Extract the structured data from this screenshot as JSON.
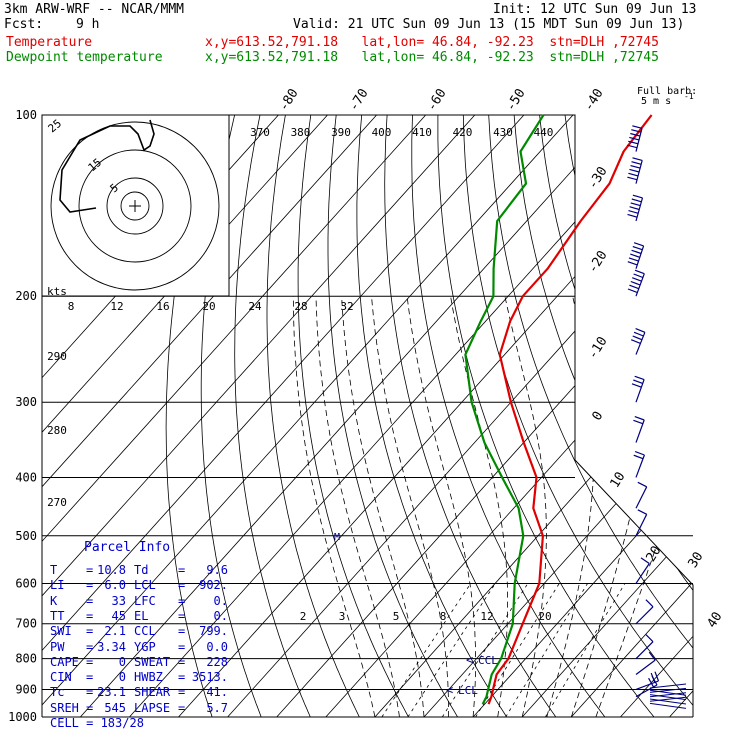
{
  "header": {
    "model": "3km ARW-WRF -- NCAR/MMM",
    "init": "Init: 12 UTC Sun 09 Jun 13",
    "fcst_label": "Fcst:",
    "fcst_hours": "9 h",
    "valid": "Valid: 21 UTC Sun 09 Jun 13 (15 MDT Sun 09 Jun 13)"
  },
  "legend": [
    {
      "name": "Temperature",
      "location": "x,y=613.52,791.18   lat,lon= 46.84, -92.23  stn=DLH ,72745",
      "color": "#e00000"
    },
    {
      "name": "Dewpoint temperature",
      "location": "x,y=613.52,791.18   lat,lon= 46.84, -92.23  stn=DLH ,72745",
      "color": "#008a00"
    }
  ],
  "wind_key": {
    "title": "Full barb:",
    "value": "5 m s",
    "exponent": "-1"
  },
  "parcel_info": {
    "title": "Parcel Info",
    "rows": [
      {
        "k1": "T",
        "v1": "10.8",
        "k2": "Td",
        "v2": "9.6"
      },
      {
        "k1": "LI",
        "v1": "6.0",
        "k2": "LCL",
        "v2": "902."
      },
      {
        "k1": "K",
        "v1": "33",
        "k2": "LFC",
        "v2": "0."
      },
      {
        "k1": "TT",
        "v1": "45",
        "k2": "EL",
        "v2": "0."
      },
      {
        "k1": "SWI",
        "v1": "2.1",
        "k2": "CCL",
        "v2": "799."
      },
      {
        "k1": "PW",
        "v1": "3.34",
        "k2": "YGP",
        "v2": "0.0"
      },
      {
        "k1": "CAPE",
        "v1": "0",
        "k2": "SWEAT",
        "v2": "228"
      },
      {
        "k1": "CIN",
        "v1": "0",
        "k2": "HWBZ",
        "v2": "3513."
      },
      {
        "k1": "Tc",
        "v1": "23.1",
        "k2": "SHEAR",
        "v2": "41."
      },
      {
        "k1": "SREH",
        "v1": "545",
        "k2": "LAPSE",
        "v2": "5.7"
      }
    ],
    "cell": "CELL = 183/28"
  },
  "chart_data": {
    "type": "line",
    "diagram": "skew-T log-p",
    "y_axis": {
      "quantity": "pressure (hPa)",
      "log_scale": true,
      "range": [
        1000,
        100
      ],
      "ticks": [
        100,
        200,
        300,
        400,
        500,
        600,
        700,
        800,
        900,
        1000
      ],
      "tick_labels": [
        "100",
        "200",
        "300",
        "400",
        "500",
        "600",
        "700",
        "800",
        "900",
        "1000"
      ]
    },
    "isotherm_labels": [
      "-80",
      "-70",
      "-60",
      "-50",
      "-40",
      "-30",
      "-20",
      "-10",
      "0",
      "10",
      "20",
      "30",
      "40"
    ],
    "isentrope_labels_top": [
      "370",
      "380",
      "390",
      "400",
      "410",
      "420",
      "430",
      "440"
    ],
    "isentrope_labels_left": [
      "290",
      "280",
      "270"
    ],
    "mixing_ratio_labels": [
      "2",
      "3",
      "5",
      "8",
      "12",
      "20"
    ],
    "hodograph": {
      "ring_labels": [
        "5",
        "15",
        "25"
      ],
      "speed_axis_label": "kts",
      "speed_ticks": [
        "8",
        "12",
        "16",
        "20",
        "24",
        "28",
        "32"
      ]
    },
    "annotations": [
      "CCL",
      "LCL"
    ],
    "series": [
      {
        "name": "Temperature",
        "color": "#e00000",
        "points": [
          [
            952,
            10.8
          ],
          [
            925,
            10
          ],
          [
            900,
            9
          ],
          [
            850,
            7
          ],
          [
            800,
            6.5
          ],
          [
            700,
            3
          ],
          [
            600,
            -1
          ],
          [
            500,
            -9
          ],
          [
            450,
            -16
          ],
          [
            400,
            -21
          ],
          [
            350,
            -30
          ],
          [
            300,
            -40
          ],
          [
            250,
            -51
          ],
          [
            220,
            -55
          ],
          [
            200,
            -57
          ],
          [
            180,
            -57
          ],
          [
            150,
            -59
          ],
          [
            130,
            -60
          ],
          [
            115,
            -63
          ],
          [
            100,
            -64
          ]
        ]
      },
      {
        "name": "Dewpoint temperature",
        "color": "#008a00",
        "points": [
          [
            952,
            9.6
          ],
          [
            925,
            9
          ],
          [
            900,
            8
          ],
          [
            850,
            6
          ],
          [
            800,
            5
          ],
          [
            700,
            1
          ],
          [
            600,
            -6
          ],
          [
            500,
            -13
          ],
          [
            450,
            -19
          ],
          [
            400,
            -28
          ],
          [
            350,
            -38
          ],
          [
            300,
            -48
          ],
          [
            250,
            -58
          ],
          [
            220,
            -61
          ],
          [
            200,
            -63
          ],
          [
            180,
            -68
          ],
          [
            150,
            -76
          ],
          [
            130,
            -77
          ],
          [
            115,
            -84
          ],
          [
            100,
            -86
          ]
        ]
      }
    ],
    "wind_profile": [
      {
        "p": 925,
        "u": -9,
        "v": -5
      },
      {
        "p": 900,
        "u": -8,
        "v": -3
      },
      {
        "p": 850,
        "u": -4,
        "v": -3
      },
      {
        "p": 800,
        "u": -2,
        "v": -2
      },
      {
        "p": 700,
        "u": -2,
        "v": -2
      },
      {
        "p": 600,
        "u": -2,
        "v": -3
      },
      {
        "p": 500,
        "u": -2,
        "v": -4
      },
      {
        "p": 450,
        "u": -3,
        "v": -6
      },
      {
        "p": 400,
        "u": -3,
        "v": -8
      },
      {
        "p": 350,
        "u": -4,
        "v": -11
      },
      {
        "p": 300,
        "u": -5,
        "v": -14
      },
      {
        "p": 250,
        "u": -8,
        "v": -20
      },
      {
        "p": 200,
        "u": -10,
        "v": -27
      },
      {
        "p": 180,
        "u": -10,
        "v": -30
      },
      {
        "p": 150,
        "u": -9,
        "v": -32
      },
      {
        "p": 130,
        "u": -8,
        "v": -30
      },
      {
        "p": 115,
        "u": -7,
        "v": -27
      }
    ]
  }
}
